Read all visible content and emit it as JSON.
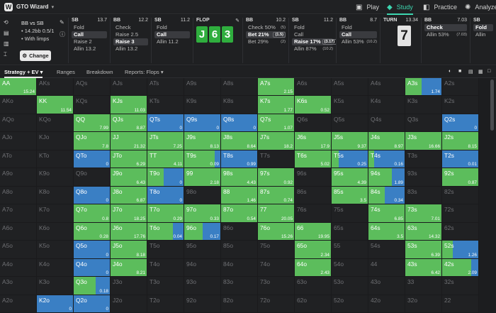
{
  "topbar": {
    "brand": "GTO Wizard",
    "nav": [
      {
        "label": "Play",
        "icon": "tv-icon",
        "glyph": "▣"
      },
      {
        "label": "Study",
        "icon": "graduation-cap-icon",
        "glyph": "◆"
      },
      {
        "label": "Practice",
        "icon": "car-icon",
        "glyph": "◧"
      },
      {
        "label": "Analyze",
        "icon": "bulb-icon",
        "glyph": "✺"
      }
    ]
  },
  "setup": {
    "title": "BB vs SB",
    "line1": "• 14.2bb 0.5/1",
    "line2": "• With limps",
    "change_label": "Change"
  },
  "columns": [
    {
      "pos": "SB",
      "size": "13.7",
      "options": [
        {
          "label": "Fold"
        },
        {
          "label": "Call",
          "selected": true
        },
        {
          "label": "Raise 2"
        },
        {
          "label": "Allin 13.2"
        }
      ]
    },
    {
      "pos": "BB",
      "size": "12.2",
      "options": [
        {
          "label": "Check"
        },
        {
          "label": "Raise 2.5"
        },
        {
          "label": "Raise 3",
          "selected": true
        },
        {
          "label": "Allin 13.2"
        }
      ]
    },
    {
      "pos": "SB",
      "size": "11.2",
      "options": [
        {
          "label": "Fold"
        },
        {
          "label": "Call",
          "selected": true
        },
        {
          "label": "Allin 11.2"
        }
      ]
    },
    {
      "pos": "BB",
      "size": "10.2",
      "options": [
        {
          "label": "Check 50%",
          "pct": "(5)"
        },
        {
          "label": "Bet 21%",
          "tag": "(1.5)",
          "selected": true
        },
        {
          "label": "Bet 29%",
          "pct": "(2)"
        }
      ]
    },
    {
      "pos": "SB",
      "size": "11.2",
      "options": [
        {
          "label": "Fold"
        },
        {
          "label": "Call"
        },
        {
          "label": "Raise 17%",
          "tag": "(3.17)",
          "selected": true
        },
        {
          "label": "Allin 87%",
          "pct": "(10.2)"
        }
      ]
    },
    {
      "pos": "BB",
      "size": "8.7",
      "options": [
        {
          "label": "Fold"
        },
        {
          "label": "Call",
          "selected": true
        },
        {
          "label": "Allin 53%",
          "pct": "(10.2)"
        }
      ]
    },
    {
      "pos": "BB",
      "size": "7.03",
      "options": [
        {
          "label": "Check",
          "selected": true
        },
        {
          "label": "Allin 53%",
          "pct": "(7.03)"
        }
      ]
    },
    {
      "pos": "SB",
      "size": "",
      "options": [
        {
          "label": "Fold",
          "selected": true
        },
        {
          "label": "Allin"
        }
      ]
    }
  ],
  "flop": {
    "label": "FLOP",
    "cards": [
      "J",
      "6",
      "3"
    ]
  },
  "turn": {
    "label": "TURN",
    "size": "13.34",
    "card": "7"
  },
  "tabs": [
    "Strategy + EV",
    "Ranges",
    "Breakdown",
    "Reports: Flops"
  ],
  "colors": {
    "green": "#5cbd5c",
    "blue": "#3a7fc4",
    "empty": "#202123",
    "accent": "#3dd6b0"
  },
  "grid": {
    "rows": [
      [
        "AA",
        "AKs",
        "AQs",
        "AJs",
        "ATs",
        "A9s",
        "A8s",
        "A7s",
        "A6s",
        "A5s",
        "A4s",
        "A3s",
        "A2s"
      ],
      [
        "AKo",
        "KK",
        "KQs",
        "KJs",
        "KTs",
        "K9s",
        "K8s",
        "K7s",
        "K6s",
        "K5s",
        "K4s",
        "K3s",
        "K2s"
      ],
      [
        "AQo",
        "KQo",
        "QQ",
        "QJs",
        "QTs",
        "Q9s",
        "Q8s",
        "Q7s",
        "Q6s",
        "Q5s",
        "Q4s",
        "Q3s",
        "Q2s"
      ],
      [
        "AJo",
        "KJo",
        "QJo",
        "JJ",
        "JTs",
        "J9s",
        "J8s",
        "J7s",
        "J6s",
        "J5s",
        "J4s",
        "J3s",
        "J2s"
      ],
      [
        "ATo",
        "KTo",
        "QTo",
        "JTo",
        "TT",
        "T9s",
        "T8s",
        "T7s",
        "T6s",
        "T5s",
        "T4s",
        "T3s",
        "T2s"
      ],
      [
        "A9o",
        "K9o",
        "Q9o",
        "J9o",
        "T9o",
        "99",
        "98s",
        "97s",
        "96s",
        "95s",
        "94s",
        "93s",
        "92s"
      ],
      [
        "A8o",
        "K8o",
        "Q8o",
        "J8o",
        "T8o",
        "98o",
        "88",
        "87s",
        "86s",
        "85s",
        "84s",
        "83s",
        "82s"
      ],
      [
        "A7o",
        "K7o",
        "Q7o",
        "J7o",
        "T7o",
        "97o",
        "87o",
        "77",
        "76s",
        "75s",
        "74s",
        "73s",
        "72s"
      ],
      [
        "A6o",
        "K6o",
        "Q6o",
        "J6o",
        "T6o",
        "96o",
        "86o",
        "76o",
        "66",
        "65s",
        "64s",
        "63s",
        "62s"
      ],
      [
        "A5o",
        "K5o",
        "Q5o",
        "J5o",
        "T5o",
        "95o",
        "85o",
        "75o",
        "65o",
        "55",
        "54s",
        "53s",
        "52s"
      ],
      [
        "A4o",
        "K4o",
        "Q4o",
        "J4o",
        "T4o",
        "94o",
        "84o",
        "74o",
        "64o",
        "54o",
        "44",
        "43s",
        "42s"
      ],
      [
        "A3o",
        "K3o",
        "Q3o",
        "J3o",
        "T3o",
        "93o",
        "83o",
        "73o",
        "63o",
        "53o",
        "43o",
        "33",
        "32s"
      ],
      [
        "A2o",
        "K2o",
        "Q2o",
        "J2o",
        "T2o",
        "92o",
        "82o",
        "72o",
        "62o",
        "52o",
        "42o",
        "32o",
        "22"
      ]
    ],
    "cells": {
      "AA": {
        "g": 1,
        "b": 0,
        "ev": "15.24"
      },
      "A7s": {
        "g": 1,
        "b": 0,
        "ev": "2.15"
      },
      "A3s": {
        "g": 0.45,
        "b": 0.55,
        "ev": "1.74"
      },
      "KK": {
        "g": 1,
        "b": 0,
        "ev": "11.54"
      },
      "KJs": {
        "g": 1,
        "b": 0,
        "ev": "11.03"
      },
      "K7s": {
        "g": 1,
        "b": 0,
        "ev": "1.77"
      },
      "K6s": {
        "g": 1,
        "b": 0,
        "ev": "0.52"
      },
      "QQ": {
        "g": 1,
        "b": 0,
        "ev": "7.99"
      },
      "QJs": {
        "g": 1,
        "b": 0,
        "ev": "8.87"
      },
      "QTs": {
        "g": 0,
        "b": 1,
        "ev": "0"
      },
      "Q9s": {
        "g": 0,
        "b": 1,
        "ev": "0"
      },
      "Q8s": {
        "g": 0,
        "b": 1,
        "ev": "0"
      },
      "Q7s": {
        "g": 1,
        "b": 0,
        "ev": "1.07"
      },
      "Q2s": {
        "g": 0,
        "b": 1,
        "ev": "0"
      },
      "QJo": {
        "g": 1,
        "b": 0,
        "ev": "7.8"
      },
      "JJ": {
        "g": 1,
        "b": 0,
        "ev": "21.32"
      },
      "JTs": {
        "g": 1,
        "b": 0,
        "ev": "7.25"
      },
      "J9s": {
        "g": 1,
        "b": 0,
        "ev": "8.13"
      },
      "J8s": {
        "g": 1,
        "b": 0,
        "ev": "8.64"
      },
      "J7s": {
        "g": 1,
        "b": 0,
        "ev": "18.2"
      },
      "J6s": {
        "g": 1,
        "b": 0,
        "ev": "17.9"
      },
      "J5s": {
        "g": 1,
        "b": 0,
        "ev": "9.37"
      },
      "J4s": {
        "g": 1,
        "b": 0,
        "ev": "8.97"
      },
      "J3s": {
        "g": 1,
        "b": 0,
        "ev": "16.66"
      },
      "J2s": {
        "g": 1,
        "b": 0,
        "ev": "8.15"
      },
      "QTo": {
        "g": 0,
        "b": 1,
        "ev": "0"
      },
      "JTo": {
        "g": 1,
        "b": 0,
        "ev": "6.29"
      },
      "TT": {
        "g": 1,
        "b": 0,
        "ev": "4.11"
      },
      "T9s": {
        "g": 0.85,
        "b": 0.15,
        "ev": "0.09"
      },
      "T8s": {
        "g": 0,
        "b": 1,
        "ev": "0.99"
      },
      "T6s": {
        "g": 1,
        "b": 0,
        "ev": "5.02"
      },
      "T5s": {
        "g": 0.2,
        "b": 0.8,
        "ev": "0.25"
      },
      "T4s": {
        "g": 0.15,
        "b": 0.85,
        "ev": "0.16"
      },
      "T2s": {
        "g": 0,
        "b": 1,
        "ev": "0.01"
      },
      "J9o": {
        "g": 1,
        "b": 0,
        "ev": "6.43"
      },
      "T9o": {
        "g": 0.45,
        "b": 0.55,
        "ev": "0"
      },
      "99": {
        "g": 1,
        "b": 0,
        "ev": "2.18"
      },
      "98s": {
        "g": 1,
        "b": 0,
        "ev": "4.43"
      },
      "97s": {
        "g": 1,
        "b": 0,
        "ev": "0.92"
      },
      "95s": {
        "g": 1,
        "b": 0,
        "ev": "4.39"
      },
      "94s": {
        "g": 0.65,
        "b": 0.35,
        "ev": "1.89"
      },
      "92s": {
        "g": 1,
        "b": 0,
        "ev": "0.87"
      },
      "Q8o": {
        "g": 0,
        "b": 1,
        "ev": "0"
      },
      "J8o": {
        "g": 1,
        "b": 0,
        "ev": "6.87"
      },
      "T8o": {
        "g": 0,
        "b": 1,
        "ev": "0"
      },
      "88": {
        "g": 1,
        "b": 0,
        "ev": "1.46"
      },
      "87s": {
        "g": 1,
        "b": 0,
        "ev": "0.74"
      },
      "85s": {
        "g": 1,
        "b": 0,
        "ev": "3.5"
      },
      "84s": {
        "g": 0.45,
        "b": 0.55,
        "ev": "0.34"
      },
      "Q7o": {
        "g": 1,
        "b": 0,
        "ev": "0.8"
      },
      "J7o": {
        "g": 1,
        "b": 0,
        "ev": "18.25"
      },
      "T7o": {
        "g": 1,
        "b": 0,
        "ev": "0.29"
      },
      "97o": {
        "g": 1,
        "b": 0,
        "ev": "0.33"
      },
      "87o": {
        "g": 1,
        "b": 0,
        "ev": "0.54"
      },
      "77": {
        "g": 1,
        "b": 0,
        "ev": "20.05"
      },
      "74s": {
        "g": 1,
        "b": 0,
        "ev": "6.85"
      },
      "73s": {
        "g": 1,
        "b": 0,
        "ev": "7.01"
      },
      "Q6o": {
        "g": 1,
        "b": 0,
        "ev": "0.28"
      },
      "J6o": {
        "g": 1,
        "b": 0,
        "ev": "17.76"
      },
      "T6o": {
        "g": 0.7,
        "b": 0.3,
        "ev": "0.04"
      },
      "96o": {
        "g": 0.5,
        "b": 0.5,
        "ev": "0.17"
      },
      "76o": {
        "g": 1,
        "b": 0,
        "ev": "15.26"
      },
      "66": {
        "g": 1,
        "b": 0,
        "ev": "19.95"
      },
      "64s": {
        "g": 1,
        "b": 0,
        "ev": "3.5"
      },
      "63s": {
        "g": 1,
        "b": 0,
        "ev": "14.32"
      },
      "Q5o": {
        "g": 0,
        "b": 1,
        "ev": "0"
      },
      "J5o": {
        "g": 1,
        "b": 0,
        "ev": "8.18"
      },
      "65o": {
        "g": 1,
        "b": 0,
        "ev": "2.34"
      },
      "53s": {
        "g": 1,
        "b": 0,
        "ev": "6.39"
      },
      "52s": {
        "g": 0.3,
        "b": 0.7,
        "ev": "1.26"
      },
      "Q4o": {
        "g": 0,
        "b": 1,
        "ev": "0"
      },
      "J4o": {
        "g": 1,
        "b": 0,
        "ev": "8.21"
      },
      "64o": {
        "g": 1,
        "b": 0,
        "ev": "2.43"
      },
      "43s": {
        "g": 1,
        "b": 0,
        "ev": "6.42"
      },
      "42s": {
        "g": 0.8,
        "b": 0.2,
        "ev": "2.09"
      },
      "Q3o": {
        "g": 0.6,
        "b": 0.4,
        "ev": "0.18"
      },
      "K2o": {
        "g": 0,
        "b": 1,
        "ev": "0"
      },
      "Q2o": {
        "g": 0,
        "b": 1,
        "ev": "0"
      }
    }
  }
}
